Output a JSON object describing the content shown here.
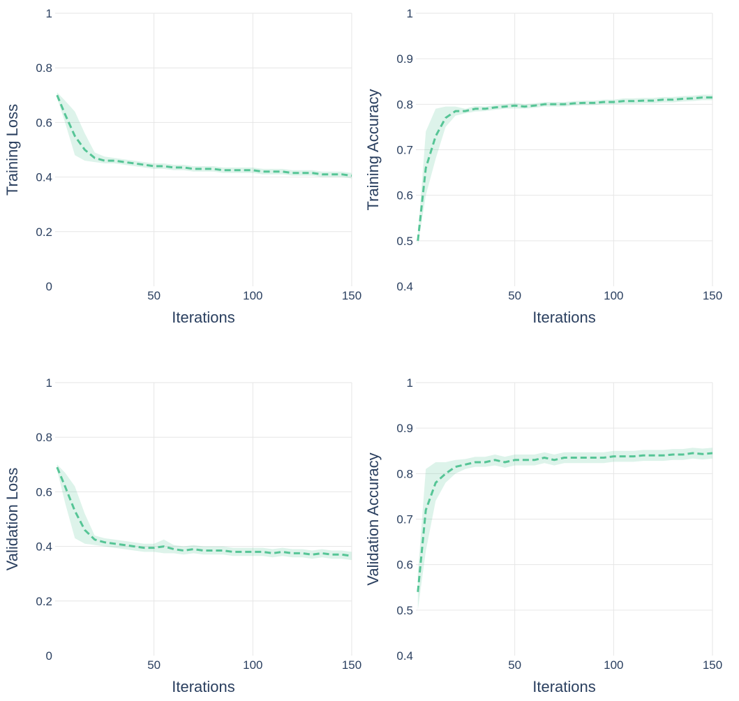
{
  "theme": {
    "line_color": "#56c596",
    "band_color": "#56c596",
    "grid_color": "#e6e6e6",
    "text_color": "#2a3f5f"
  },
  "chart_data": [
    {
      "id": "training-loss",
      "type": "line",
      "title": "",
      "xlabel": "Iterations",
      "ylabel": "Training Loss",
      "xlim": [
        0,
        150
      ],
      "ylim": [
        0,
        1
      ],
      "xticks": [
        50,
        100,
        150
      ],
      "yticks": [
        0,
        0.2,
        0.4,
        0.6,
        0.8,
        1
      ],
      "ytick_labels": [
        "0",
        "0.2",
        "0.4",
        "0.6",
        "0.8",
        "1"
      ],
      "grid": true,
      "legend": "none",
      "line_style": "dashed",
      "series": [
        {
          "x": [
            1,
            5,
            10,
            15,
            20,
            25,
            30,
            35,
            40,
            45,
            50,
            55,
            60,
            65,
            70,
            75,
            80,
            85,
            90,
            95,
            100,
            105,
            110,
            115,
            120,
            125,
            130,
            135,
            140,
            145,
            150
          ],
          "y": [
            0.7,
            0.63,
            0.55,
            0.5,
            0.47,
            0.46,
            0.46,
            0.455,
            0.45,
            0.445,
            0.44,
            0.44,
            0.435,
            0.435,
            0.43,
            0.43,
            0.43,
            0.425,
            0.425,
            0.425,
            0.425,
            0.42,
            0.42,
            0.42,
            0.415,
            0.415,
            0.415,
            0.41,
            0.41,
            0.41,
            0.405
          ],
          "lower": [
            0.69,
            0.6,
            0.48,
            0.46,
            0.455,
            0.45,
            0.45,
            0.445,
            0.44,
            0.435,
            0.43,
            0.43,
            0.425,
            0.425,
            0.42,
            0.42,
            0.42,
            0.415,
            0.415,
            0.415,
            0.415,
            0.41,
            0.41,
            0.41,
            0.405,
            0.405,
            0.405,
            0.4,
            0.4,
            0.4,
            0.395
          ],
          "upper": [
            0.71,
            0.68,
            0.64,
            0.56,
            0.49,
            0.475,
            0.47,
            0.465,
            0.46,
            0.455,
            0.45,
            0.45,
            0.445,
            0.445,
            0.44,
            0.44,
            0.44,
            0.435,
            0.435,
            0.435,
            0.435,
            0.43,
            0.43,
            0.43,
            0.425,
            0.425,
            0.425,
            0.42,
            0.42,
            0.42,
            0.415
          ]
        }
      ]
    },
    {
      "id": "training-accuracy",
      "type": "line",
      "title": "",
      "xlabel": "Iterations",
      "ylabel": "Training Accuracy",
      "xlim": [
        0,
        150
      ],
      "ylim": [
        0.4,
        1
      ],
      "xticks": [
        50,
        100,
        150
      ],
      "yticks": [
        0.4,
        0.5,
        0.6,
        0.7,
        0.8,
        0.9,
        1
      ],
      "ytick_labels": [
        "0.4",
        "0.5",
        "0.6",
        "0.7",
        "0.8",
        "0.9",
        "1"
      ],
      "grid": true,
      "legend": "none",
      "line_style": "dashed",
      "series": [
        {
          "x": [
            1,
            5,
            10,
            15,
            20,
            25,
            30,
            35,
            40,
            45,
            50,
            55,
            60,
            65,
            70,
            75,
            80,
            85,
            90,
            95,
            100,
            105,
            110,
            115,
            120,
            125,
            130,
            135,
            140,
            145,
            150
          ],
          "y": [
            0.5,
            0.66,
            0.73,
            0.77,
            0.785,
            0.785,
            0.79,
            0.79,
            0.793,
            0.795,
            0.797,
            0.795,
            0.797,
            0.8,
            0.8,
            0.8,
            0.802,
            0.803,
            0.803,
            0.805,
            0.805,
            0.807,
            0.807,
            0.808,
            0.808,
            0.81,
            0.81,
            0.812,
            0.813,
            0.815,
            0.815
          ],
          "lower": [
            0.49,
            0.6,
            0.68,
            0.75,
            0.775,
            0.78,
            0.784,
            0.785,
            0.788,
            0.79,
            0.791,
            0.79,
            0.792,
            0.795,
            0.795,
            0.795,
            0.797,
            0.798,
            0.798,
            0.8,
            0.8,
            0.801,
            0.801,
            0.802,
            0.802,
            0.804,
            0.804,
            0.806,
            0.807,
            0.809,
            0.809
          ],
          "upper": [
            0.51,
            0.74,
            0.79,
            0.795,
            0.795,
            0.79,
            0.796,
            0.795,
            0.798,
            0.8,
            0.803,
            0.8,
            0.802,
            0.805,
            0.805,
            0.805,
            0.807,
            0.808,
            0.808,
            0.81,
            0.81,
            0.813,
            0.813,
            0.814,
            0.814,
            0.816,
            0.816,
            0.818,
            0.819,
            0.821,
            0.821
          ]
        }
      ]
    },
    {
      "id": "validation-loss",
      "type": "line",
      "title": "",
      "xlabel": "Iterations",
      "ylabel": "Validation Loss",
      "xlim": [
        0,
        150
      ],
      "ylim": [
        0,
        1
      ],
      "xticks": [
        50,
        100,
        150
      ],
      "yticks": [
        0,
        0.2,
        0.4,
        0.6,
        0.8,
        1
      ],
      "ytick_labels": [
        "0",
        "0.2",
        "0.4",
        "0.6",
        "0.8",
        "1"
      ],
      "grid": true,
      "legend": "none",
      "line_style": "dashed",
      "series": [
        {
          "x": [
            1,
            5,
            10,
            15,
            20,
            25,
            30,
            35,
            40,
            45,
            50,
            55,
            60,
            65,
            70,
            75,
            80,
            85,
            90,
            95,
            100,
            105,
            110,
            115,
            120,
            125,
            130,
            135,
            140,
            145,
            150
          ],
          "y": [
            0.69,
            0.62,
            0.53,
            0.46,
            0.425,
            0.415,
            0.41,
            0.405,
            0.4,
            0.395,
            0.395,
            0.4,
            0.39,
            0.385,
            0.39,
            0.385,
            0.385,
            0.385,
            0.38,
            0.38,
            0.38,
            0.38,
            0.375,
            0.38,
            0.375,
            0.375,
            0.37,
            0.375,
            0.37,
            0.37,
            0.365
          ],
          "lower": [
            0.68,
            0.56,
            0.43,
            0.41,
            0.405,
            0.4,
            0.395,
            0.39,
            0.385,
            0.38,
            0.38,
            0.375,
            0.375,
            0.37,
            0.375,
            0.37,
            0.37,
            0.37,
            0.365,
            0.365,
            0.365,
            0.365,
            0.36,
            0.365,
            0.36,
            0.36,
            0.355,
            0.36,
            0.355,
            0.355,
            0.35
          ],
          "upper": [
            0.7,
            0.67,
            0.62,
            0.52,
            0.44,
            0.43,
            0.425,
            0.42,
            0.415,
            0.41,
            0.41,
            0.425,
            0.405,
            0.4,
            0.405,
            0.4,
            0.4,
            0.4,
            0.395,
            0.395,
            0.395,
            0.395,
            0.39,
            0.395,
            0.39,
            0.39,
            0.385,
            0.39,
            0.385,
            0.385,
            0.38
          ]
        }
      ]
    },
    {
      "id": "validation-accuracy",
      "type": "line",
      "title": "",
      "xlabel": "Iterations",
      "ylabel": "Validation Accuracy",
      "xlim": [
        0,
        150
      ],
      "ylim": [
        0.4,
        1
      ],
      "xticks": [
        50,
        100,
        150
      ],
      "yticks": [
        0.4,
        0.5,
        0.6,
        0.7,
        0.8,
        0.9,
        1
      ],
      "ytick_labels": [
        "0.4",
        "0.5",
        "0.6",
        "0.7",
        "0.8",
        "0.9",
        "1"
      ],
      "grid": true,
      "legend": "none",
      "line_style": "dashed",
      "series": [
        {
          "x": [
            1,
            5,
            10,
            15,
            20,
            25,
            30,
            35,
            40,
            45,
            50,
            55,
            60,
            65,
            70,
            75,
            80,
            85,
            90,
            95,
            100,
            105,
            110,
            115,
            120,
            125,
            130,
            135,
            140,
            145,
            150
          ],
          "y": [
            0.54,
            0.72,
            0.78,
            0.8,
            0.815,
            0.82,
            0.825,
            0.825,
            0.83,
            0.825,
            0.83,
            0.83,
            0.83,
            0.835,
            0.83,
            0.835,
            0.835,
            0.835,
            0.835,
            0.835,
            0.838,
            0.838,
            0.838,
            0.84,
            0.84,
            0.84,
            0.842,
            0.842,
            0.845,
            0.843,
            0.845
          ],
          "lower": [
            0.5,
            0.63,
            0.74,
            0.78,
            0.8,
            0.81,
            0.815,
            0.815,
            0.818,
            0.813,
            0.818,
            0.818,
            0.818,
            0.823,
            0.818,
            0.823,
            0.823,
            0.823,
            0.823,
            0.823,
            0.826,
            0.826,
            0.826,
            0.828,
            0.828,
            0.828,
            0.83,
            0.83,
            0.833,
            0.831,
            0.833
          ],
          "upper": [
            0.58,
            0.81,
            0.825,
            0.825,
            0.83,
            0.832,
            0.837,
            0.837,
            0.842,
            0.837,
            0.842,
            0.842,
            0.842,
            0.847,
            0.842,
            0.847,
            0.847,
            0.847,
            0.847,
            0.847,
            0.85,
            0.85,
            0.85,
            0.852,
            0.852,
            0.852,
            0.854,
            0.854,
            0.857,
            0.855,
            0.857
          ]
        }
      ]
    }
  ]
}
